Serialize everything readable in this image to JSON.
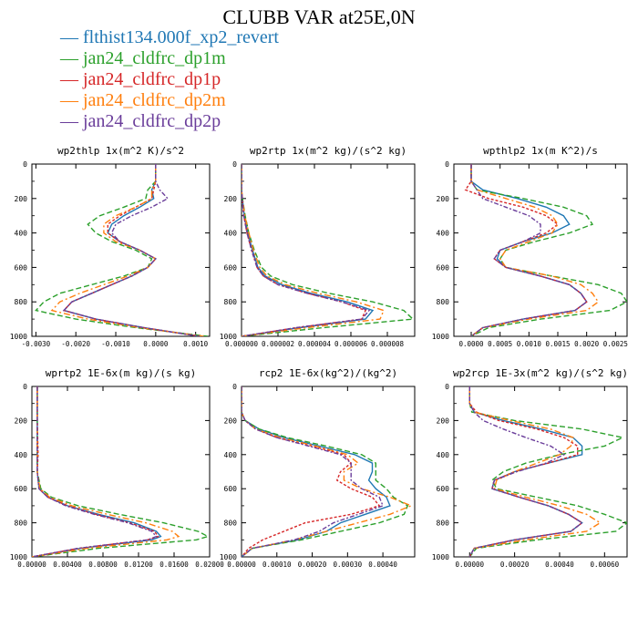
{
  "title": "CLUBB VAR at25E,0N",
  "colors": {
    "flthist134.000f_xp2_revert": "#1f77b4",
    "jan24_cldfrc_dp1m": "#2ca02c",
    "jan24_cldfrc_dp1p": "#d62728",
    "jan24_cldfrc_dp2m": "#ff7f0e",
    "jan24_cldfrc_dp2p": "#6a3d9a"
  },
  "legend": [
    {
      "label": "flthist134.000f_xp2_revert",
      "color": "#1f77b4"
    },
    {
      "label": "jan24_cldfrc_dp1m",
      "color": "#2ca02c"
    },
    {
      "label": "jan24_cldfrc_dp1p",
      "color": "#d62728"
    },
    {
      "label": "jan24_cldfrc_dp2m",
      "color": "#ff7f0e"
    },
    {
      "label": "jan24_cldfrc_dp2p",
      "color": "#6a3d9a"
    }
  ],
  "chart_data": [
    {
      "type": "line",
      "title": "wp2thlp  1x(m^2 K)/s^2",
      "xlim": [
        -0.0031,
        0.00135
      ],
      "ylim": [
        1000,
        0
      ],
      "xticks": [
        -0.003,
        -0.002,
        -0.001,
        0,
        0.001
      ],
      "xtick_labels": [
        "-0.0030",
        "-0.0020",
        "-0.0010",
        "0.0000",
        "0.0010"
      ],
      "yticks": [
        0,
        200,
        400,
        600,
        800,
        1000
      ],
      "ytick_labels": [
        "0",
        "200",
        "400",
        "600",
        "800",
        "1000"
      ],
      "y": [
        0,
        100,
        150,
        200,
        250,
        300,
        350,
        400,
        450,
        500,
        550,
        600,
        650,
        700,
        750,
        800,
        850,
        900,
        950,
        1000
      ],
      "series": [
        {
          "name": "flthist134.000f_xp2_revert",
          "values": [
            0,
            0,
            -0.0001,
            -5e-05,
            -0.0004,
            -0.0008,
            -0.0011,
            -0.0012,
            -0.0009,
            -0.0004,
            0,
            -0.0002,
            -0.0006,
            -0.0011,
            -0.0016,
            -0.0021,
            -0.0023,
            -0.0015,
            -0.0003,
            0.0011
          ]
        },
        {
          "name": "jan24_cldfrc_dp1m",
          "values": [
            0,
            0,
            -0.0002,
            -0.00025,
            -0.0008,
            -0.0014,
            -0.0017,
            -0.0015,
            -0.0011,
            -0.0005,
            -0.0001,
            -0.0002,
            -0.0008,
            -0.0016,
            -0.0024,
            -0.0028,
            -0.003,
            -0.002,
            -0.0005,
            0.0013
          ]
        },
        {
          "name": "jan24_cldfrc_dp1p",
          "values": [
            0,
            0,
            -5e-05,
            -0.0001,
            -0.0005,
            -0.0009,
            -0.0012,
            -0.0012,
            -0.0009,
            -0.0004,
            0,
            -0.0002,
            -0.0006,
            -0.0011,
            -0.0016,
            -0.0021,
            -0.0023,
            -0.0015,
            -0.0003,
            0.0011
          ]
        },
        {
          "name": "jan24_cldfrc_dp2m",
          "values": [
            0,
            0,
            -0.0001,
            -0.0001,
            -0.0005,
            -0.001,
            -0.0013,
            -0.0013,
            -0.001,
            -0.0004,
            0,
            -0.0002,
            -0.0007,
            -0.0013,
            -0.0019,
            -0.0024,
            -0.0026,
            -0.0017,
            -0.0004,
            0.0012
          ]
        },
        {
          "name": "jan24_cldfrc_dp2p",
          "values": [
            0,
            0,
            0.0001,
            0.0003,
            -0.0001,
            -0.0006,
            -0.001,
            -0.0011,
            -0.0009,
            -0.0004,
            0,
            -0.0002,
            -0.0006,
            -0.0011,
            -0.0016,
            -0.0021,
            -0.0023,
            -0.0015,
            -0.0003,
            0.0011
          ]
        }
      ]
    },
    {
      "type": "line",
      "title": "wp2rtp  1x(m^2 kg)/(s^2 kg)",
      "xlim": [
        0,
        9.5e-06
      ],
      "ylim": [
        1000,
        0
      ],
      "xticks": [
        0,
        2e-06,
        4e-06,
        6e-06,
        8e-06
      ],
      "xtick_labels": [
        "0.000000",
        "0.000002",
        "0.000004",
        "0.000006",
        "0.000008"
      ],
      "yticks": [
        0,
        200,
        400,
        600,
        800,
        1000
      ],
      "ytick_labels": [
        "0",
        "200",
        "400",
        "600",
        "800",
        "1000"
      ],
      "y": [
        0,
        150,
        200,
        300,
        400,
        500,
        600,
        650,
        700,
        750,
        800,
        850,
        900,
        950,
        1000
      ],
      "series": [
        {
          "name": "flthist134.000f_xp2_revert",
          "values": [
            0,
            0,
            5e-08,
            1.5e-07,
            3.5e-07,
            6e-07,
            9e-07,
            1.3e-06,
            2.2e-06,
            3.8e-06,
            5.8e-06,
            7.2e-06,
            6.8e-06,
            3.2e-06,
            0
          ]
        },
        {
          "name": "jan24_cldfrc_dp1m",
          "values": [
            0,
            0,
            5e-08,
            2e-07,
            4e-07,
            7e-07,
            1.1e-06,
            1.6e-06,
            2.8e-06,
            4.8e-06,
            7.2e-06,
            8.9e-06,
            9.4e-06,
            4.5e-06,
            0
          ]
        },
        {
          "name": "jan24_cldfrc_dp1p",
          "values": [
            0,
            0,
            4e-08,
            1.2e-07,
            3e-07,
            5.5e-07,
            8.5e-07,
            1.2e-06,
            2e-06,
            3.6e-06,
            5.5e-06,
            6.8e-06,
            6.6e-06,
            3e-06,
            0
          ]
        },
        {
          "name": "jan24_cldfrc_dp2m",
          "values": [
            0,
            0,
            5e-08,
            1.8e-07,
            4e-07,
            6.5e-07,
            1e-06,
            1.4e-06,
            2.4e-06,
            4.2e-06,
            6.3e-06,
            7.8e-06,
            7.6e-06,
            3.6e-06,
            0
          ]
        },
        {
          "name": "jan24_cldfrc_dp2p",
          "values": [
            0,
            0,
            4e-08,
            1.2e-07,
            3e-07,
            5.5e-07,
            8.5e-07,
            1.2e-06,
            2e-06,
            3.6e-06,
            5.5e-06,
            7e-06,
            6.6e-06,
            3e-06,
            0
          ]
        }
      ]
    },
    {
      "type": "line",
      "title": "wpthlp2  1x(m K^2)/s",
      "xlim": [
        -0.0003,
        0.0027
      ],
      "ylim": [
        1000,
        0
      ],
      "xticks": [
        0,
        0.0005,
        0.001,
        0.0015,
        0.002,
        0.0025
      ],
      "xtick_labels": [
        "0.0000",
        "0.0005",
        "0.0010",
        "0.0015",
        "0.0020",
        "0.0025"
      ],
      "yticks": [
        0,
        200,
        400,
        600,
        800,
        1000
      ],
      "ytick_labels": [
        "0",
        "200",
        "400",
        "600",
        "800",
        "1000"
      ],
      "y": [
        0,
        100,
        150,
        200,
        250,
        300,
        350,
        400,
        450,
        500,
        550,
        600,
        650,
        700,
        750,
        800,
        850,
        900,
        950,
        1000
      ],
      "series": [
        {
          "name": "flthist134.000f_xp2_revert",
          "values": [
            0,
            0,
            0.0002,
            0.0008,
            0.0013,
            0.0016,
            0.0017,
            0.0014,
            0.0009,
            0.0005,
            0.00045,
            0.0006,
            0.0012,
            0.0017,
            0.0019,
            0.002,
            0.0018,
            0.0009,
            0.0002,
            0
          ]
        },
        {
          "name": "jan24_cldfrc_dp1m",
          "values": [
            0,
            0,
            0.0001,
            0.0009,
            0.0016,
            0.002,
            0.0021,
            0.0017,
            0.0011,
            0.0006,
            0.0005,
            0.0006,
            0.0014,
            0.0022,
            0.0026,
            0.0027,
            0.0024,
            0.0012,
            0.0003,
            0
          ]
        },
        {
          "name": "jan24_cldfrc_dp1p",
          "values": [
            0,
            0,
            -0.0001,
            0.0003,
            0.0009,
            0.0013,
            0.0015,
            0.0013,
            0.0009,
            0.0005,
            0.0004,
            0.0006,
            0.0012,
            0.0017,
            0.0019,
            0.002,
            0.0018,
            0.0009,
            0.0002,
            0
          ]
        },
        {
          "name": "jan24_cldfrc_dp2m",
          "values": [
            0,
            0,
            0.0001,
            0.0006,
            0.0011,
            0.0014,
            0.0015,
            0.0014,
            0.001,
            0.0006,
            0.0005,
            0.0006,
            0.0014,
            0.0019,
            0.0021,
            0.0022,
            0.002,
            0.001,
            0.0002,
            0
          ]
        },
        {
          "name": "jan24_cldfrc_dp2p",
          "values": [
            0,
            0,
            0.0001,
            0.0002,
            0.0006,
            0.001,
            0.0012,
            0.0012,
            0.0009,
            0.0005,
            0.0004,
            0.0006,
            0.0012,
            0.0017,
            0.0019,
            0.002,
            0.0018,
            0.0009,
            0.0002,
            0
          ]
        }
      ]
    },
    {
      "type": "line",
      "title": "wprtp2  1E-6x(m kg)/(s kg)",
      "xlim": [
        0,
        0.02
      ],
      "ylim": [
        1000,
        0
      ],
      "xticks": [
        0,
        0.004,
        0.008,
        0.012,
        0.016,
        0.02
      ],
      "xtick_labels": [
        "0.00000",
        "0.00400",
        "0.00800",
        "0.01200",
        "0.01600",
        "0.02000"
      ],
      "yticks": [
        0,
        200,
        400,
        600,
        800,
        1000
      ],
      "ytick_labels": [
        "0",
        "200",
        "400",
        "600",
        "800",
        "1000"
      ],
      "y": [
        0,
        200,
        400,
        500,
        600,
        650,
        700,
        750,
        800,
        850,
        880,
        900,
        950,
        1000
      ],
      "series": [
        {
          "name": "flthist134.000f_xp2_revert",
          "values": [
            0.0006,
            0.0006,
            0.0006,
            0.0006,
            0.0008,
            0.0018,
            0.004,
            0.0075,
            0.0115,
            0.014,
            0.0145,
            0.0135,
            0.0055,
            0
          ]
        },
        {
          "name": "jan24_cldfrc_dp1m",
          "values": [
            0.0006,
            0.0006,
            0.0006,
            0.0006,
            0.001,
            0.0022,
            0.0052,
            0.0098,
            0.0148,
            0.0187,
            0.0198,
            0.0185,
            0.0075,
            0
          ]
        },
        {
          "name": "jan24_cldfrc_dp1p",
          "values": [
            0.0006,
            0.0006,
            0.0007,
            0.0006,
            0.0008,
            0.0018,
            0.004,
            0.0072,
            0.011,
            0.0138,
            0.0142,
            0.013,
            0.0052,
            0
          ]
        },
        {
          "name": "jan24_cldfrc_dp2m",
          "values": [
            0.0006,
            0.0006,
            0.0006,
            0.0006,
            0.0009,
            0.002,
            0.0045,
            0.0085,
            0.0128,
            0.0158,
            0.0165,
            0.0152,
            0.0062,
            0
          ]
        },
        {
          "name": "jan24_cldfrc_dp2p",
          "values": [
            0.0006,
            0.0006,
            0.0006,
            0.0006,
            0.0008,
            0.0018,
            0.0038,
            0.007,
            0.0108,
            0.0135,
            0.014,
            0.013,
            0.0052,
            0
          ]
        }
      ]
    },
    {
      "type": "line",
      "title": "rcp2  1E-6x(kg^2)/(kg^2)",
      "xlim": [
        0,
        0.00049
      ],
      "ylim": [
        1000,
        0
      ],
      "xticks": [
        0,
        0.0001,
        0.0002,
        0.0003,
        0.0004
      ],
      "xtick_labels": [
        "0.00000",
        "0.00010",
        "0.00020",
        "0.00030",
        "0.00040"
      ],
      "yticks": [
        0,
        200,
        400,
        600,
        800,
        1000
      ],
      "ytick_labels": [
        "0",
        "200",
        "400",
        "600",
        "800",
        "1000"
      ],
      "y": [
        0,
        150,
        200,
        250,
        300,
        350,
        400,
        450,
        500,
        550,
        600,
        650,
        700,
        750,
        800,
        850,
        900,
        950,
        1000
      ],
      "series": [
        {
          "name": "flthist134.000f_xp2_revert",
          "values": [
            0,
            0,
            1e-05,
            5e-05,
            0.00012,
            0.00022,
            0.00032,
            0.00037,
            0.00037,
            0.00036,
            0.00038,
            0.00041,
            0.00042,
            0.00035,
            0.00028,
            0.00024,
            0.00016,
            3e-05,
            0
          ]
        },
        {
          "name": "jan24_cldfrc_dp1m",
          "values": [
            0,
            0,
            1e-05,
            5e-05,
            0.00013,
            0.00024,
            0.00034,
            0.00038,
            0.00038,
            0.00038,
            0.00041,
            0.00043,
            0.00047,
            0.00046,
            0.00039,
            0.00028,
            0.00017,
            3e-05,
            0
          ]
        },
        {
          "name": "jan24_cldfrc_dp1p",
          "values": [
            0,
            0,
            1e-05,
            4e-05,
            0.0001,
            0.0002,
            0.00029,
            0.00031,
            0.00028,
            0.00027,
            0.00031,
            0.00037,
            0.00039,
            0.00031,
            0.00018,
            0.00012,
            6e-05,
            2e-05,
            0
          ]
        },
        {
          "name": "jan24_cldfrc_dp2m",
          "values": [
            0,
            0,
            1e-05,
            4e-05,
            0.00011,
            0.00021,
            0.0003,
            0.00033,
            0.00029,
            0.00029,
            0.00034,
            0.00042,
            0.00048,
            0.00042,
            0.00033,
            0.00024,
            0.00015,
            3e-05,
            0
          ]
        },
        {
          "name": "jan24_cldfrc_dp2p",
          "values": [
            0,
            0,
            1e-05,
            4e-05,
            0.0001,
            0.00019,
            0.00028,
            0.00031,
            0.00031,
            0.00031,
            0.00034,
            0.00039,
            0.0004,
            0.00033,
            0.00026,
            0.00022,
            0.00015,
            3e-05,
            0
          ]
        }
      ]
    },
    {
      "type": "line",
      "title": "wp2rcp  1E-3x(m^2 kg)/(s^2 kg)",
      "xlim": [
        -7e-05,
        0.0007
      ],
      "ylim": [
        1000,
        0
      ],
      "xticks": [
        0,
        0.0002,
        0.0004,
        0.0006
      ],
      "xtick_labels": [
        "0.00000",
        "0.00020",
        "0.00040",
        "0.00060"
      ],
      "yticks": [
        0,
        200,
        400,
        600,
        800,
        1000
      ],
      "ytick_labels": [
        "0",
        "200",
        "400",
        "600",
        "800",
        "1000"
      ],
      "y": [
        0,
        100,
        150,
        200,
        250,
        300,
        350,
        400,
        450,
        500,
        550,
        600,
        650,
        700,
        750,
        800,
        850,
        900,
        950,
        1000
      ],
      "series": [
        {
          "name": "flthist134.000f_xp2_revert",
          "values": [
            0,
            0,
            2e-05,
            0.00015,
            0.00032,
            0.00046,
            0.0005,
            0.0005,
            0.00035,
            0.0002,
            0.00011,
            0.0001,
            0.00022,
            0.00035,
            0.00044,
            0.0005,
            0.00045,
            0.0002,
            2e-05,
            0
          ]
        },
        {
          "name": "jan24_cldfrc_dp1m",
          "values": [
            0,
            0,
            1e-05,
            0.0002,
            0.0005,
            0.00068,
            0.0006,
            0.0004,
            0.00025,
            0.00015,
            0.0001,
            0.00012,
            0.0003,
            0.00048,
            0.0006,
            0.0007,
            0.00065,
            0.0003,
            3e-05,
            0
          ]
        },
        {
          "name": "jan24_cldfrc_dp1p",
          "values": [
            0,
            0,
            3e-05,
            0.00013,
            0.0003,
            0.00042,
            0.00048,
            0.00048,
            0.00035,
            0.0002,
            0.00011,
            0.0001,
            0.00022,
            0.00035,
            0.00044,
            0.0005,
            0.00045,
            0.0002,
            2e-05,
            0
          ]
        },
        {
          "name": "jan24_cldfrc_dp2m",
          "values": [
            0,
            0,
            2e-05,
            0.00018,
            0.00036,
            0.00046,
            0.00045,
            0.0004,
            0.0003,
            0.0002,
            0.00012,
            0.00011,
            0.00025,
            0.0004,
            0.00052,
            0.00058,
            0.00052,
            0.00025,
            2e-05,
            0
          ]
        },
        {
          "name": "jan24_cldfrc_dp2p",
          "values": [
            0,
            0,
            2e-05,
            6e-05,
            0.00015,
            0.00025,
            0.00036,
            0.00042,
            0.00034,
            0.00021,
            0.00011,
            0.0001,
            0.00022,
            0.00035,
            0.00044,
            0.0005,
            0.00045,
            0.0002,
            2e-05,
            0
          ]
        }
      ]
    }
  ]
}
